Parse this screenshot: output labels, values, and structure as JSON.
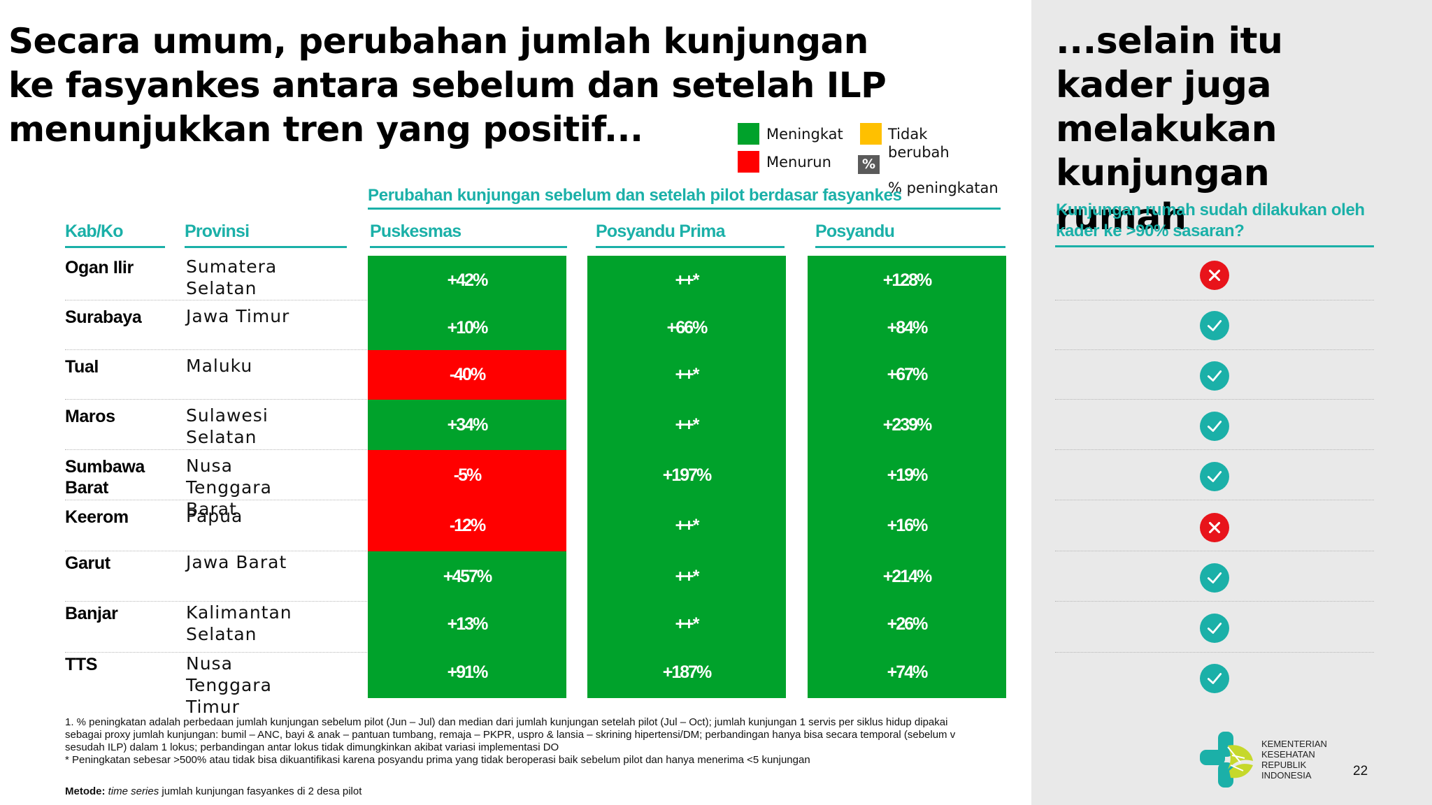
{
  "title": "Secara umum, perubahan jumlah kunjungan ke fasyankes antara sebelum dan setelah ILP menunjukkan tren yang positif...",
  "legend": {
    "increase_label": "Meningkat",
    "decrease_label": "Menurun",
    "unchanged_label": "Tidak berubah",
    "percent_symbol": "%",
    "percent_label": "% peningkatan",
    "colors": {
      "increase": "#00a22b",
      "decrease": "#ff0000",
      "unchanged": "#ffc000",
      "percent": "#5a5a5a"
    }
  },
  "section_header": "Perubahan kunjungan sebelum dan setelah pilot berdasar fasyankes",
  "columns": {
    "kab": "Kab/Ko",
    "provinsi": "Provinsi",
    "puskesmas": "Puskesmas",
    "posyandu_prima": "Posyandu Prima",
    "posyandu": "Posyandu"
  },
  "rows": [
    {
      "kab": "Ogan Ilir",
      "provinsi": "Sumatera Selatan",
      "puskesmas": "+42%",
      "puskesmas_status": "increase",
      "posyandu_prima": "++*",
      "posyandu": "+128%",
      "home_visit": "no"
    },
    {
      "kab": "Surabaya",
      "provinsi": "Jawa Timur",
      "puskesmas": "+10%",
      "puskesmas_status": "increase",
      "posyandu_prima": "+66%",
      "posyandu": "+84%",
      "home_visit": "yes"
    },
    {
      "kab": "Tual",
      "provinsi": "Maluku",
      "puskesmas": "-40%",
      "puskesmas_status": "decrease",
      "posyandu_prima": "++*",
      "posyandu": "+67%",
      "home_visit": "yes"
    },
    {
      "kab": "Maros",
      "provinsi": "Sulawesi Selatan",
      "puskesmas": "+34%",
      "puskesmas_status": "increase",
      "posyandu_prima": "++*",
      "posyandu": "+239%",
      "home_visit": "yes"
    },
    {
      "kab": "Sumbawa Barat",
      "provinsi": "Nusa Tenggara Barat",
      "puskesmas": "-5%",
      "puskesmas_status": "decrease",
      "posyandu_prima": "+197%",
      "posyandu": "+19%",
      "home_visit": "yes"
    },
    {
      "kab": "Keerom",
      "provinsi": "Papua",
      "puskesmas": "-12%",
      "puskesmas_status": "decrease",
      "posyandu_prima": "++*",
      "posyandu": "+16%",
      "home_visit": "no"
    },
    {
      "kab": "Garut",
      "provinsi": "Jawa Barat",
      "puskesmas": "+457%",
      "puskesmas_status": "increase",
      "posyandu_prima": "++*",
      "posyandu": "+214%",
      "home_visit": "yes"
    },
    {
      "kab": "Banjar",
      "provinsi": "Kalimantan Selatan",
      "puskesmas": "+13%",
      "puskesmas_status": "increase",
      "posyandu_prima": "++*",
      "posyandu": "+26%",
      "home_visit": "yes"
    },
    {
      "kab": "TTS",
      "provinsi": "Nusa Tenggara Timur",
      "puskesmas": "+91%",
      "puskesmas_status": "increase",
      "posyandu_prima": "+187%",
      "posyandu": "+74%",
      "home_visit": "yes"
    }
  ],
  "right_panel": {
    "title": "...selain itu kader juga melakukan kunjungan rumah",
    "subtitle": "Kunjungan rumah sudah dilakukan oleh kader ke >90% sasaran?",
    "yes_icon": "check-icon",
    "no_icon": "cross-icon",
    "colors": {
      "yes": "#1bb0a8",
      "no": "#e8141b"
    }
  },
  "footnote": {
    "line1": "1. % peningkatan adalah perbedaan jumlah kunjungan sebelum pilot (Jun – Jul) dan median dari jumlah kunjungan setelah pilot (Jul – Oct); jumlah kunjungan 1 servis per siklus hidup dipakai sebagai proxy jumlah kunjungan: bumil – ANC, bayi & anak – pantuan tumbang, remaja – PKPR, uspro & lansia – skrining hipertensi/DM; perbandingan hanya bisa secara temporal (sebelum v sesudah ILP) dalam 1 lokus; perbandingan antar lokus tidak dimungkinkan akibat variasi implementasi DO",
    "line2": "* Peningkatan sebesar >500% atau tidak bisa dikuantifikasi karena posyandu prima yang tidak beroperasi baik sebelum pilot dan hanya menerima <5 kunjungan"
  },
  "method": {
    "label": "Metode:",
    "italic": "time series",
    "text": " jumlah kunjungan fasyankes di 2 desa pilot"
  },
  "logo_text": [
    "KEMENTERIAN",
    "KESEHATAN",
    "REPUBLIK",
    "INDONESIA"
  ],
  "page_number": "22"
}
